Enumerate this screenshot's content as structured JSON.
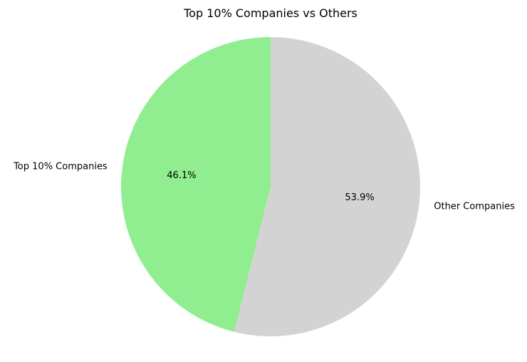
{
  "chart_data": {
    "type": "pie",
    "title": "Top 10% Companies vs Others",
    "slices": [
      {
        "label": "Top 10% Companies",
        "value": 46.1,
        "pct_label": "46.1%",
        "color": "#90ee90"
      },
      {
        "label": "Other Companies",
        "value": 53.9,
        "pct_label": "53.9%",
        "color": "#d3d3d3"
      }
    ],
    "start_angle_deg": 90,
    "direction": "counterclockwise"
  }
}
